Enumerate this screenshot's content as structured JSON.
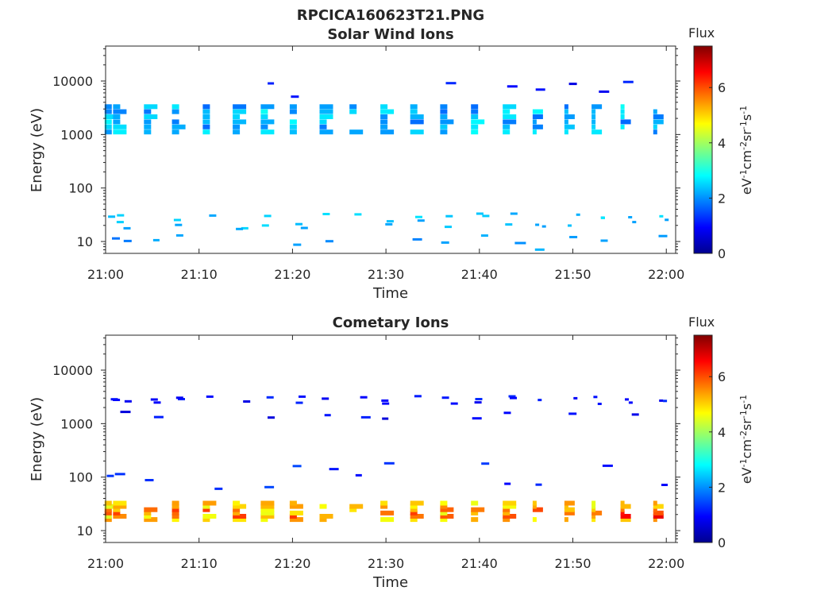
{
  "figure": {
    "filename": "RPCICA160623T21.PNG",
    "x_tick_labels": [
      "21:00",
      "21:10",
      "21:20",
      "21:30",
      "21:40",
      "21:50",
      "22:00"
    ],
    "y_tick_labels": [
      "10",
      "100",
      "1000",
      "10000"
    ],
    "xlabel": "Time",
    "ylabel": "Energy (eV)",
    "colorbar": {
      "title": "Flux",
      "ticks": [
        "0",
        "2",
        "4",
        "6"
      ],
      "range": [
        0,
        7.5
      ],
      "colormap": "jet"
    }
  },
  "colors": {
    "jet_stops": [
      "#00008f",
      "#0000ff",
      "#00ffff",
      "#80ff80",
      "#ffff00",
      "#ff8000",
      "#ff0000",
      "#800000"
    ],
    "axis": "#262626",
    "background": "#ffffff"
  },
  "chart_data": [
    {
      "type": "heatmap",
      "title": "Solar Wind Ions",
      "xlabel": "Time",
      "ylabel": "Energy (eV)",
      "xlim": [
        "21:00",
        "22:01"
      ],
      "ylim": [
        6,
        45000
      ],
      "yscale": "log",
      "colorbar_label": "Flux",
      "z_range": [
        0,
        7.5
      ],
      "sweep_times_min": [
        0.3,
        1.2,
        4.5,
        7.5,
        10.8,
        14,
        17,
        20.1,
        23.3,
        26.5,
        29.8,
        33,
        36.2,
        39.5,
        42.9,
        46.1,
        49.5,
        52.4,
        55.5,
        59
      ],
      "bands": [
        {
          "energy_range_eV": [
            1000,
            3700
          ],
          "flux_approx": 2.3,
          "description": "solar wind proton / alpha bands at each sweep"
        },
        {
          "energy_range_eV": [
            17,
            34
          ],
          "flux_approx": 2.4,
          "description": "low-energy band at each sweep"
        },
        {
          "energy_range_eV": [
            5000,
            14000
          ],
          "flux_approx": 1.0,
          "description": "sparse high-energy counts"
        },
        {
          "energy_range_eV": [
            7,
            13
          ],
          "flux_approx": 2.0,
          "description": "sparse low-energy counts"
        }
      ]
    },
    {
      "type": "heatmap",
      "title": "Cometary Ions",
      "xlabel": "Time",
      "ylabel": "Energy (eV)",
      "xlim": [
        "21:00",
        "22:01"
      ],
      "ylim": [
        6,
        45000
      ],
      "yscale": "log",
      "colorbar_label": "Flux",
      "z_range": [
        0,
        7.5
      ],
      "sweep_times_min": [
        0.3,
        1.2,
        4.5,
        7.5,
        10.8,
        14,
        17,
        20.1,
        23.3,
        26.5,
        29.8,
        33,
        36.2,
        39.5,
        42.9,
        46.1,
        49.5,
        52.4,
        55.5,
        59
      ],
      "bands": [
        {
          "energy_range_eV": [
            15,
            35
          ],
          "flux_approx": 5.0,
          "peak_flux_approx": 6.2,
          "description": "strong cometary ion band at each sweep"
        },
        {
          "energy_range_eV": [
            2300,
            3300
          ],
          "flux_approx": 1.0,
          "description": "weak high-energy band"
        },
        {
          "energy_range_eV": [
            1200,
            1700
          ],
          "flux_approx": 0.9,
          "description": "sparse counts"
        },
        {
          "energy_range_eV": [
            60,
            200
          ],
          "flux_approx": 1.2,
          "description": "sparse counts"
        }
      ]
    }
  ]
}
